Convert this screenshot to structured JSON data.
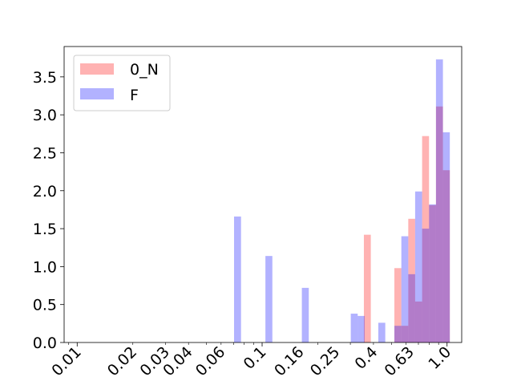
{
  "chart_data": {
    "type": "bar",
    "title": "",
    "xlabel": "",
    "ylabel": "",
    "x_scale": "log",
    "xlim": [
      0.0085,
      1.2
    ],
    "ylim": [
      0,
      3.9
    ],
    "grid": false,
    "legend_position": "top-left",
    "x_ticks": [
      {
        "value": 0.01,
        "label": "0.01"
      },
      {
        "value": 0.02,
        "label": "0.02"
      },
      {
        "value": 0.03,
        "label": "0.03"
      },
      {
        "value": 0.04,
        "label": "0.04"
      },
      {
        "value": 0.06,
        "label": "0.06"
      },
      {
        "value": 0.1,
        "label": "0.1"
      },
      {
        "value": 0.16,
        "label": "0.16"
      },
      {
        "value": 0.25,
        "label": "0.25"
      },
      {
        "value": 0.4,
        "label": "0.4"
      },
      {
        "value": 0.63,
        "label": "0.63"
      },
      {
        "value": 1.0,
        "label": "1.0"
      }
    ],
    "y_ticks": [
      {
        "value": 0.0,
        "label": "0.0"
      },
      {
        "value": 0.5,
        "label": "0.5"
      },
      {
        "value": 1.0,
        "label": "1.0"
      },
      {
        "value": 1.5,
        "label": "1.5"
      },
      {
        "value": 2.0,
        "label": "2.0"
      },
      {
        "value": 2.5,
        "label": "2.5"
      },
      {
        "value": 3.0,
        "label": "3.0"
      },
      {
        "value": 3.5,
        "label": "3.5"
      }
    ],
    "series": [
      {
        "name": "0_N",
        "color": "#ff0000",
        "opacity": 0.3,
        "bins": [
          {
            "x0": 0.355,
            "x1": 0.387,
            "y": 1.42
          },
          {
            "x0": 0.519,
            "x1": 0.566,
            "y": 0.98
          },
          {
            "x0": 0.566,
            "x1": 0.617,
            "y": 0.22
          },
          {
            "x0": 0.617,
            "x1": 0.672,
            "y": 1.63
          },
          {
            "x0": 0.672,
            "x1": 0.733,
            "y": 0.54
          },
          {
            "x0": 0.733,
            "x1": 0.799,
            "y": 2.72
          },
          {
            "x0": 0.799,
            "x1": 0.871,
            "y": 1.81
          },
          {
            "x0": 0.871,
            "x1": 0.95,
            "y": 3.11
          },
          {
            "x0": 0.95,
            "x1": 1.035,
            "y": 2.27
          }
        ]
      },
      {
        "name": "F",
        "color": "#0000ff",
        "opacity": 0.3,
        "bins": [
          {
            "x0": 0.0705,
            "x1": 0.0769,
            "y": 1.66
          },
          {
            "x0": 0.1042,
            "x1": 0.1136,
            "y": 1.14
          },
          {
            "x0": 0.164,
            "x1": 0.1788,
            "y": 0.72
          },
          {
            "x0": 0.3015,
            "x1": 0.3287,
            "y": 0.38
          },
          {
            "x0": 0.3287,
            "x1": 0.3584,
            "y": 0.35
          },
          {
            "x0": 0.425,
            "x1": 0.4634,
            "y": 0.26
          },
          {
            "x0": 0.519,
            "x1": 0.566,
            "y": 0.22
          },
          {
            "x0": 0.566,
            "x1": 0.617,
            "y": 1.4
          },
          {
            "x0": 0.617,
            "x1": 0.672,
            "y": 0.9
          },
          {
            "x0": 0.672,
            "x1": 0.733,
            "y": 1.99
          },
          {
            "x0": 0.733,
            "x1": 0.799,
            "y": 1.5
          },
          {
            "x0": 0.799,
            "x1": 0.871,
            "y": 1.82
          },
          {
            "x0": 0.871,
            "x1": 0.95,
            "y": 3.73
          },
          {
            "x0": 0.95,
            "x1": 1.035,
            "y": 2.77
          }
        ]
      }
    ]
  }
}
